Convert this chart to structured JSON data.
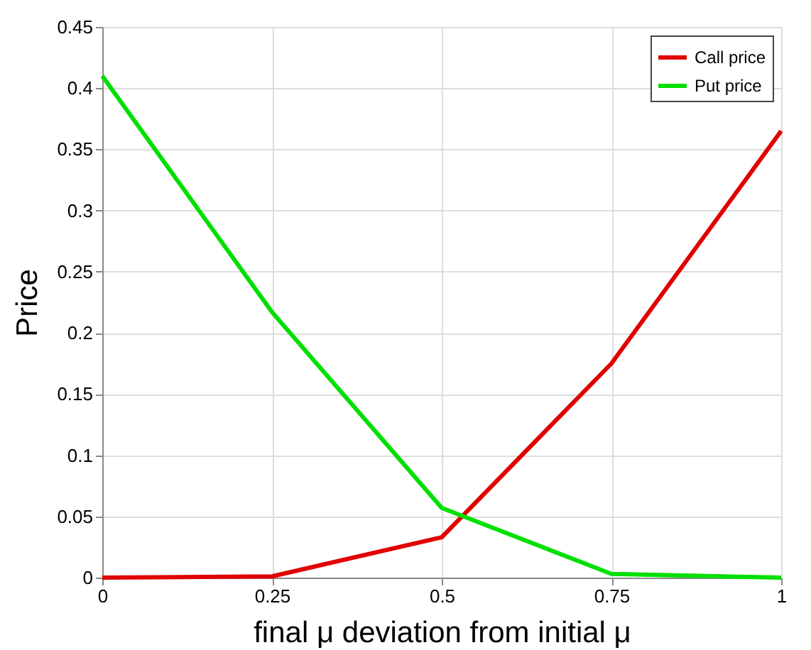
{
  "chart_data": {
    "type": "line",
    "xlabel": "final μ deviation from initial μ",
    "ylabel": "Price",
    "x": [
      0,
      0.25,
      0.5,
      0.75,
      1
    ],
    "series": [
      {
        "name": "Call price",
        "color": "#e00000",
        "values": [
          0,
          0.001,
          0.033,
          0.175,
          0.365
        ]
      },
      {
        "name": "Put price",
        "color": "#00e000",
        "values": [
          0.41,
          0.217,
          0.057,
          0.003,
          0.0
        ]
      }
    ],
    "xlim": [
      0,
      1
    ],
    "xticks": [
      0,
      0.25,
      0.5,
      0.75,
      1
    ],
    "ylim": [
      0,
      0.45
    ],
    "yticks": [
      0,
      0.05,
      0.1,
      0.15,
      0.2,
      0.25,
      0.3,
      0.35,
      0.4,
      0.45
    ],
    "grid": true,
    "legend": "top right",
    "line_style": "solid"
  }
}
